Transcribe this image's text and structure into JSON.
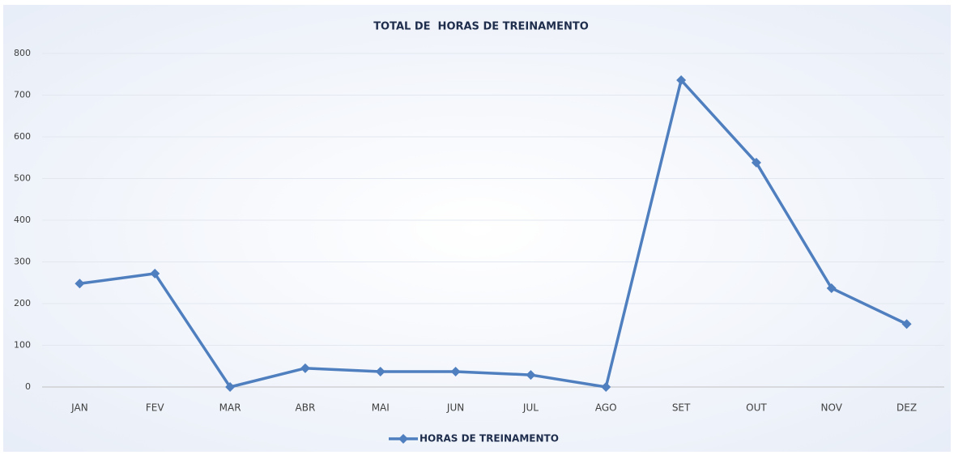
{
  "chart_data": {
    "type": "line",
    "title": "TOTAL DE  HORAS DE TREINAMENTO",
    "categories": [
      "JAN",
      "FEV",
      "MAR",
      "ABR",
      "MAI",
      "JUN",
      "JUL",
      "AGO",
      "SET",
      "OUT",
      "NOV",
      "DEZ"
    ],
    "series": [
      {
        "name": "HORAS DE TREINAMENTO",
        "color": "#4f7fbf",
        "values": [
          248,
          272,
          0,
          45,
          37,
          37,
          29,
          0,
          736,
          538,
          237,
          151
        ]
      }
    ],
    "ylim": [
      0,
      800
    ],
    "yticks": [
      0,
      100,
      200,
      300,
      400,
      500,
      600,
      700,
      800
    ],
    "grid": true,
    "legend": "bottom"
  }
}
